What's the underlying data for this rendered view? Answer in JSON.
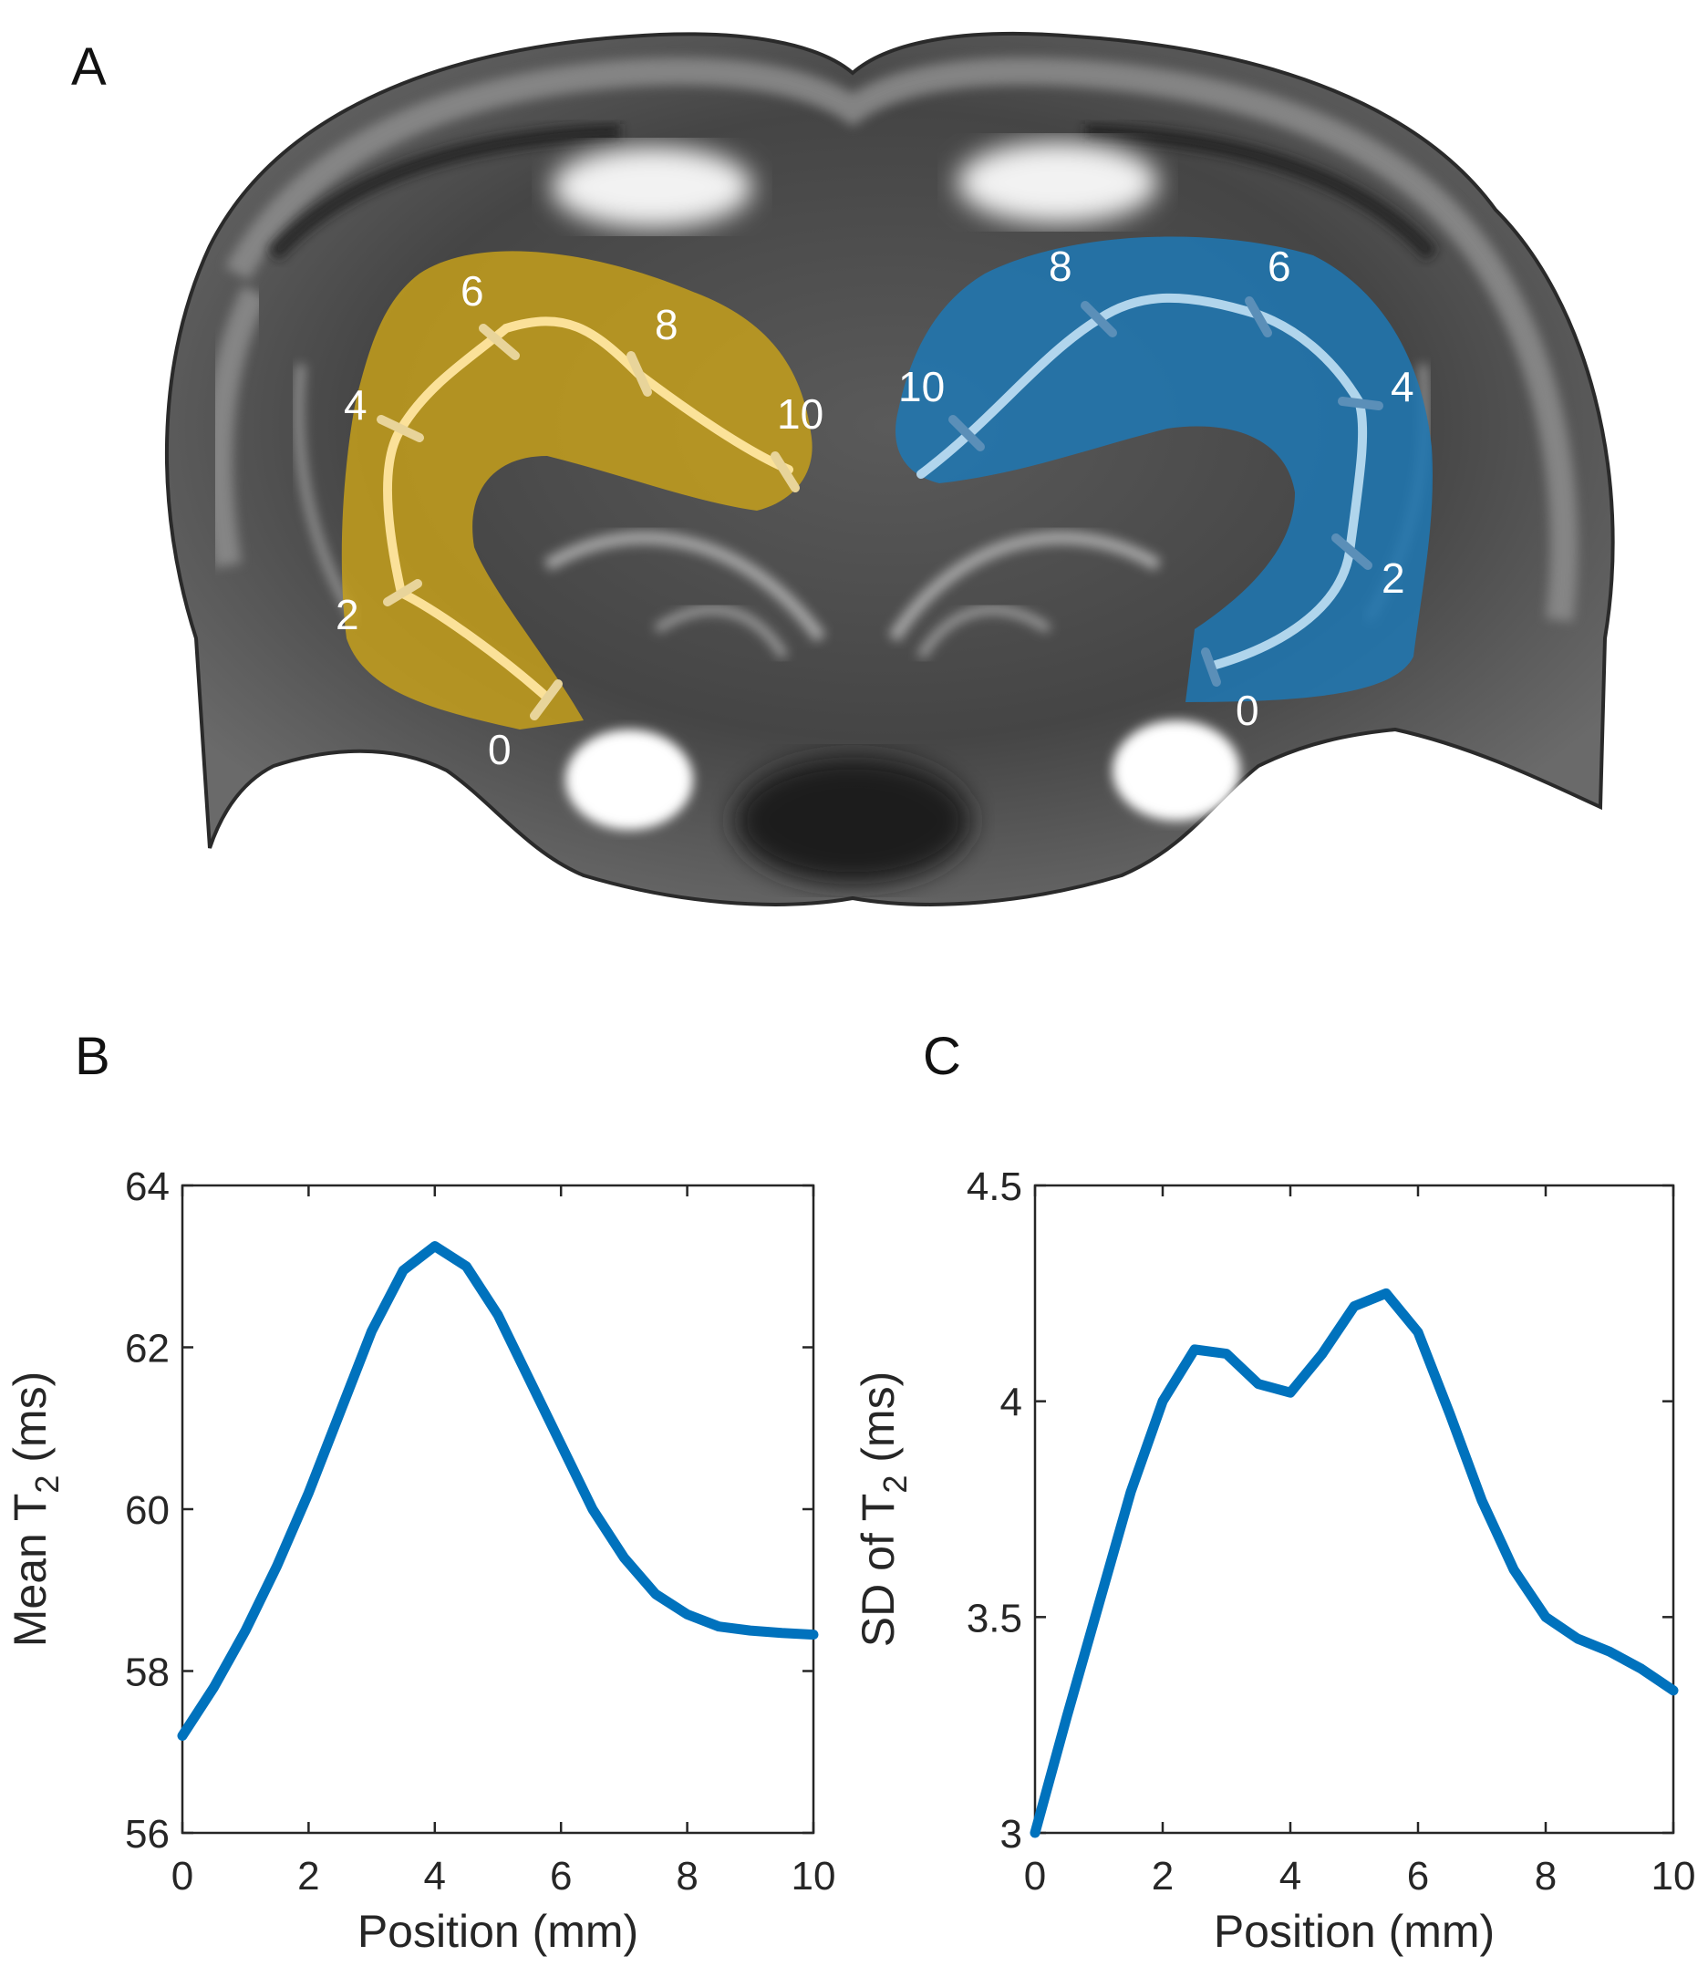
{
  "panels": {
    "a": "A",
    "b": "B",
    "c": "C"
  },
  "brain_markers": {
    "left_labels": [
      "0",
      "2",
      "4",
      "6",
      "8",
      "10"
    ],
    "right_labels": [
      "0",
      "2",
      "4",
      "6",
      "8",
      "10"
    ]
  },
  "colors": {
    "series": "#0072BD",
    "left_region": "#C9A21A",
    "right_region": "#1F78B4",
    "left_path": "#FFE6A0",
    "right_path": "#B8DAF0"
  },
  "chart_data": [
    {
      "type": "line",
      "panel": "B",
      "xlabel": "Position (mm)",
      "ylabel_main": "Mean T",
      "ylabel_sub": "2",
      "ylabel_unit": " (ms)",
      "xlim": [
        0,
        10
      ],
      "ylim": [
        56,
        64
      ],
      "xticks": [
        0,
        2,
        4,
        6,
        8,
        10
      ],
      "yticks": [
        56,
        58,
        60,
        62,
        64
      ],
      "series": [
        {
          "x": [
            0,
            0.5,
            1,
            1.5,
            2,
            2.5,
            3,
            3.5,
            4,
            4.5,
            5,
            5.5,
            6,
            6.5,
            7,
            7.5,
            8,
            8.5,
            9,
            9.5,
            10
          ],
          "y": [
            57.2,
            57.8,
            58.5,
            59.3,
            60.2,
            61.2,
            62.2,
            62.95,
            63.25,
            63.0,
            62.4,
            61.6,
            60.8,
            60.0,
            59.4,
            58.95,
            58.7,
            58.55,
            58.5,
            58.47,
            58.45
          ]
        }
      ]
    },
    {
      "type": "line",
      "panel": "C",
      "xlabel": "Position (mm)",
      "ylabel_main": "SD of T",
      "ylabel_sub": "2",
      "ylabel_unit": " (ms)",
      "xlim": [
        0,
        10
      ],
      "ylim": [
        3,
        4.5
      ],
      "xticks": [
        0,
        2,
        4,
        6,
        8,
        10
      ],
      "yticks": [
        3,
        3.5,
        4,
        4.5
      ],
      "series": [
        {
          "x": [
            0,
            0.5,
            1,
            1.5,
            2,
            2.5,
            3,
            3.5,
            4,
            4.5,
            5,
            5.5,
            6,
            6.5,
            7,
            7.5,
            8,
            8.5,
            9,
            9.5,
            10
          ],
          "y": [
            3.0,
            3.27,
            3.53,
            3.79,
            4.0,
            4.12,
            4.11,
            4.04,
            4.02,
            4.11,
            4.22,
            4.25,
            4.16,
            3.97,
            3.77,
            3.61,
            3.5,
            3.45,
            3.42,
            3.38,
            3.33
          ]
        }
      ]
    }
  ]
}
